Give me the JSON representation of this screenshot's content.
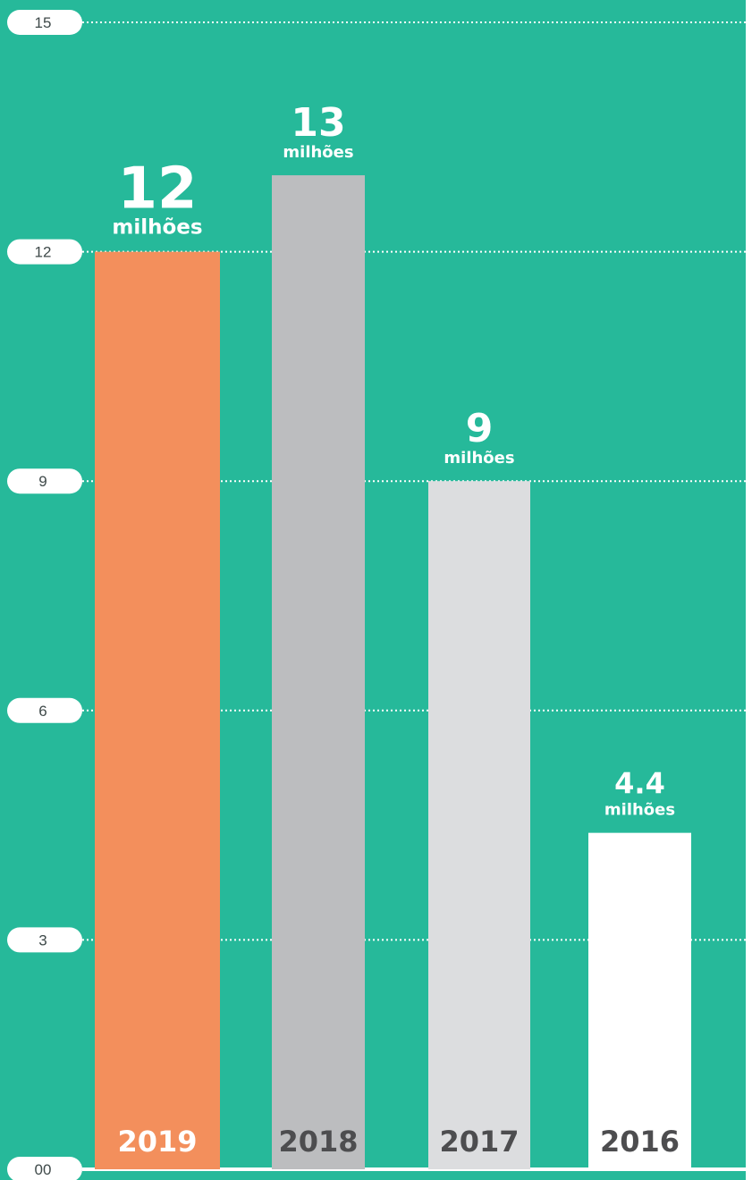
{
  "chart_data": {
    "type": "bar",
    "categories": [
      "2019",
      "2018",
      "2017",
      "2016"
    ],
    "values": [
      12,
      13,
      9,
      4.4
    ],
    "value_labels": [
      "12",
      "13",
      "9",
      "4.4"
    ],
    "unit_label": "milhões",
    "ylim": [
      0,
      15
    ],
    "yticks": [
      0,
      3,
      6,
      9,
      12,
      15
    ],
    "ytick_labels": [
      "00",
      "3",
      "6",
      "9",
      "12",
      "15"
    ],
    "grid": true,
    "colors": {
      "background": "#26b99a",
      "bars": [
        "#f38f5c",
        "#bcbdbf",
        "#dcdddf",
        "#ffffff"
      ],
      "category_text": [
        "#ffffff",
        "#4d4d4f",
        "#4d4d4f",
        "#4d4d4f"
      ],
      "tick_pill": "#ffffff",
      "gridline": "#ffffff"
    }
  }
}
